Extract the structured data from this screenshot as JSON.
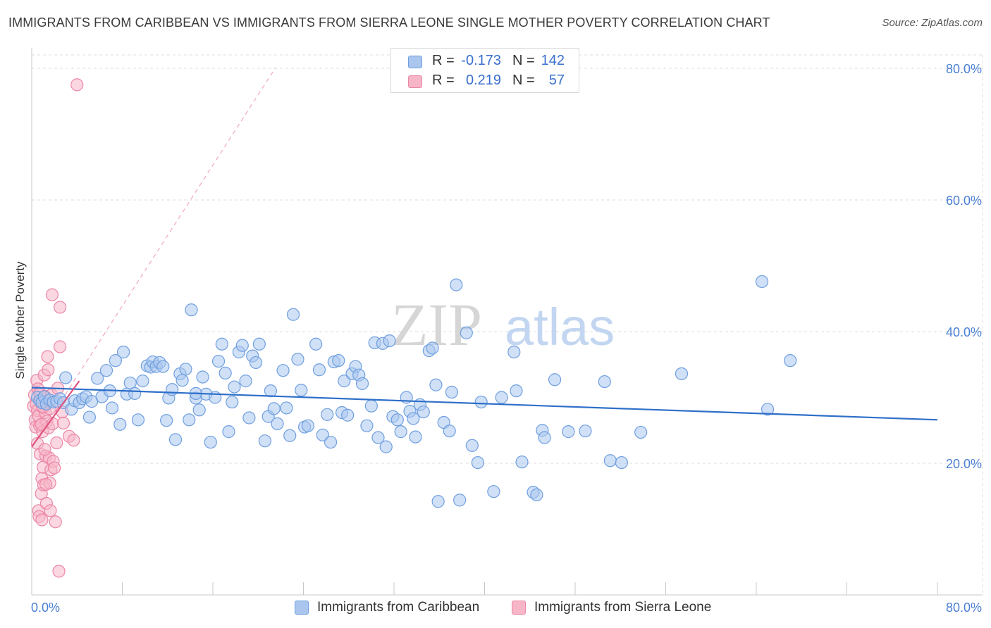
{
  "header": {
    "title": "IMMIGRANTS FROM CARIBBEAN VS IMMIGRANTS FROM SIERRA LEONE SINGLE MOTHER POVERTY CORRELATION CHART",
    "source": "Source: ZipAtlas.com"
  },
  "legend": {
    "rows": [
      {
        "r_label": "R =",
        "r_value": "-0.173",
        "n_label": "N =",
        "n_value": "142"
      },
      {
        "r_label": "R =",
        "r_value": "0.219",
        "n_label": "N =",
        "n_value": "57"
      }
    ]
  },
  "bottom_legend": {
    "items": [
      "Immigrants from Caribbean",
      "Immigrants from Sierra Leone"
    ]
  },
  "watermark": {
    "part1": "ZIP",
    "part2": "atlas"
  },
  "colors": {
    "blue_fill": "#aac6ef",
    "blue_stroke": "#6f9fe0",
    "blue_line": "#2e6fc9",
    "pink_fill": "#f6b6c8",
    "pink_stroke": "#ec86a6",
    "pink_line": "#e0527e",
    "grid": "#dcdcdc",
    "tick_text": "#4a7fd4"
  },
  "chart_data": {
    "type": "scatter",
    "title": "IMMIGRANTS FROM CARIBBEAN VS IMMIGRANTS FROM SIERRA LEONE SINGLE MOTHER POVERTY CORRELATION CHART",
    "xlabel": "",
    "ylabel": "Single Mother Poverty",
    "xlim": [
      0,
      82
    ],
    "ylim": [
      0,
      82
    ],
    "x_tick_labels": [
      "0.0%",
      "80.0%"
    ],
    "y_tick_labels": [
      "20.0%",
      "40.0%",
      "60.0%",
      "80.0%"
    ],
    "y_ticks": [
      20,
      40,
      60,
      80
    ],
    "grid": "horizontal dashed",
    "legend_position": "top-center",
    "series": [
      {
        "name": "Immigrants from Caribbean",
        "R": -0.173,
        "N": 142,
        "trend": {
          "x": [
            0,
            80
          ],
          "y": [
            31.5,
            26.6
          ]
        },
        "points": [
          [
            0.5,
            30.0
          ],
          [
            0.7,
            29.5
          ],
          [
            0.9,
            29.2
          ],
          [
            1.1,
            30.1
          ],
          [
            1.3,
            29.0
          ],
          [
            1.6,
            29.6
          ],
          [
            1.9,
            29.3
          ],
          [
            2.2,
            29.4
          ],
          [
            2.5,
            29.8
          ],
          [
            2.8,
            29.2
          ],
          [
            3.0,
            33.0
          ],
          [
            3.5,
            28.2
          ],
          [
            3.8,
            29.5
          ],
          [
            4.2,
            29.2
          ],
          [
            4.5,
            29.8
          ],
          [
            4.8,
            30.1
          ],
          [
            5.1,
            27.0
          ],
          [
            5.3,
            29.4
          ],
          [
            5.8,
            32.9
          ],
          [
            6.2,
            30.1
          ],
          [
            6.6,
            34.1
          ],
          [
            6.9,
            31.0
          ],
          [
            7.1,
            28.4
          ],
          [
            7.4,
            35.6
          ],
          [
            7.8,
            25.9
          ],
          [
            8.1,
            36.9
          ],
          [
            8.4,
            30.5
          ],
          [
            8.7,
            32.2
          ],
          [
            9.1,
            30.6
          ],
          [
            9.4,
            26.6
          ],
          [
            9.8,
            32.5
          ],
          [
            10.2,
            34.8
          ],
          [
            10.5,
            34.6
          ],
          [
            10.7,
            35.4
          ],
          [
            11.0,
            34.7
          ],
          [
            11.3,
            35.3
          ],
          [
            11.6,
            34.7
          ],
          [
            11.9,
            26.5
          ],
          [
            12.1,
            29.9
          ],
          [
            12.4,
            31.2
          ],
          [
            12.7,
            23.6
          ],
          [
            13.1,
            33.6
          ],
          [
            13.3,
            32.6
          ],
          [
            13.6,
            34.3
          ],
          [
            13.9,
            26.6
          ],
          [
            14.1,
            43.3
          ],
          [
            14.5,
            29.9
          ],
          [
            14.8,
            28.1
          ],
          [
            15.1,
            33.1
          ],
          [
            15.4,
            30.5
          ],
          [
            15.8,
            23.2
          ],
          [
            16.2,
            30.0
          ],
          [
            16.5,
            35.5
          ],
          [
            16.8,
            38.1
          ],
          [
            17.1,
            33.7
          ],
          [
            17.4,
            24.8
          ],
          [
            17.7,
            29.3
          ],
          [
            17.9,
            31.6
          ],
          [
            18.3,
            36.9
          ],
          [
            18.6,
            37.9
          ],
          [
            18.9,
            32.5
          ],
          [
            19.2,
            26.9
          ],
          [
            19.5,
            36.3
          ],
          [
            19.8,
            35.3
          ],
          [
            20.1,
            38.1
          ],
          [
            20.6,
            23.4
          ],
          [
            20.9,
            27.1
          ],
          [
            21.1,
            31.0
          ],
          [
            21.4,
            28.3
          ],
          [
            21.7,
            26.0
          ],
          [
            22.2,
            34.1
          ],
          [
            22.5,
            28.4
          ],
          [
            22.8,
            24.2
          ],
          [
            23.1,
            42.6
          ],
          [
            23.5,
            35.8
          ],
          [
            23.8,
            31.1
          ],
          [
            24.1,
            25.5
          ],
          [
            24.4,
            25.7
          ],
          [
            25.1,
            38.1
          ],
          [
            25.4,
            34.2
          ],
          [
            25.7,
            24.3
          ],
          [
            26.1,
            27.4
          ],
          [
            26.4,
            23.2
          ],
          [
            26.7,
            35.4
          ],
          [
            27.1,
            35.6
          ],
          [
            27.4,
            27.7
          ],
          [
            27.6,
            32.5
          ],
          [
            27.9,
            27.3
          ],
          [
            28.3,
            33.6
          ],
          [
            28.6,
            34.7
          ],
          [
            28.9,
            33.4
          ],
          [
            29.2,
            32.1
          ],
          [
            29.6,
            25.7
          ],
          [
            30.0,
            28.7
          ],
          [
            30.3,
            38.3
          ],
          [
            30.6,
            23.9
          ],
          [
            31.0,
            38.2
          ],
          [
            31.3,
            22.5
          ],
          [
            31.6,
            38.6
          ],
          [
            31.9,
            27.1
          ],
          [
            32.3,
            26.6
          ],
          [
            32.6,
            24.8
          ],
          [
            33.1,
            30.0
          ],
          [
            33.4,
            27.9
          ],
          [
            33.7,
            26.8
          ],
          [
            33.9,
            24.0
          ],
          [
            34.3,
            28.9
          ],
          [
            34.6,
            27.8
          ],
          [
            35.1,
            37.1
          ],
          [
            35.4,
            37.5
          ],
          [
            35.7,
            31.9
          ],
          [
            35.9,
            14.2
          ],
          [
            36.4,
            26.2
          ],
          [
            37.1,
            30.8
          ],
          [
            37.5,
            47.1
          ],
          [
            37.8,
            14.4
          ],
          [
            38.4,
            39.8
          ],
          [
            38.9,
            22.7
          ],
          [
            39.4,
            20.1
          ],
          [
            39.7,
            29.3
          ],
          [
            40.8,
            15.7
          ],
          [
            41.5,
            30.0
          ],
          [
            42.6,
            36.9
          ],
          [
            42.8,
            31.0
          ],
          [
            43.3,
            20.2
          ],
          [
            44.3,
            15.6
          ],
          [
            44.6,
            15.2
          ],
          [
            45.1,
            25.0
          ],
          [
            45.3,
            23.9
          ],
          [
            46.2,
            32.7
          ],
          [
            47.4,
            24.8
          ],
          [
            48.9,
            24.9
          ],
          [
            50.6,
            32.4
          ],
          [
            51.1,
            20.4
          ],
          [
            52.1,
            20.1
          ],
          [
            53.8,
            24.7
          ],
          [
            57.4,
            33.6
          ],
          [
            64.5,
            47.6
          ],
          [
            65.0,
            28.2
          ],
          [
            67.0,
            35.6
          ],
          [
            14.5,
            30.6
          ],
          [
            36.9,
            24.9
          ]
        ]
      },
      {
        "name": "Immigrants from Sierra Leone",
        "R": 0.219,
        "N": 57,
        "trend": {
          "x": [
            0,
            4.2
          ],
          "y": [
            22.5,
            32.5
          ]
        },
        "trend_dashed": {
          "x": [
            0,
            21.5
          ],
          "y": [
            22.5,
            80
          ]
        },
        "points": [
          [
            0.15,
            28.7
          ],
          [
            0.25,
            30.4
          ],
          [
            0.3,
            26.6
          ],
          [
            0.35,
            25.5
          ],
          [
            0.4,
            29.0
          ],
          [
            0.45,
            32.6
          ],
          [
            0.5,
            28.0
          ],
          [
            0.5,
            23.0
          ],
          [
            0.55,
            31.3
          ],
          [
            0.6,
            27.2
          ],
          [
            0.6,
            12.8
          ],
          [
            0.65,
            11.9
          ],
          [
            0.7,
            30.6
          ],
          [
            0.7,
            25.7
          ],
          [
            0.75,
            21.4
          ],
          [
            0.8,
            29.6
          ],
          [
            0.85,
            15.4
          ],
          [
            0.9,
            17.7
          ],
          [
            0.9,
            11.4
          ],
          [
            0.95,
            24.8
          ],
          [
            1.0,
            28.4
          ],
          [
            1.0,
            19.4
          ],
          [
            1.05,
            16.7
          ],
          [
            1.1,
            33.4
          ],
          [
            1.15,
            30.2
          ],
          [
            1.2,
            27.7
          ],
          [
            1.25,
            21.1
          ],
          [
            1.3,
            13.9
          ],
          [
            1.35,
            26.4
          ],
          [
            1.4,
            36.2
          ],
          [
            1.5,
            25.4
          ],
          [
            1.55,
            20.8
          ],
          [
            1.6,
            28.3
          ],
          [
            1.6,
            17.0
          ],
          [
            1.65,
            12.8
          ],
          [
            1.7,
            19.0
          ],
          [
            1.75,
            30.4
          ],
          [
            1.8,
            45.6
          ],
          [
            1.85,
            26.0
          ],
          [
            1.9,
            20.3
          ],
          [
            2.0,
            19.3
          ],
          [
            2.1,
            11.1
          ],
          [
            2.2,
            23.1
          ],
          [
            2.3,
            31.4
          ],
          [
            2.4,
            3.6
          ],
          [
            2.5,
            43.7
          ],
          [
            2.5,
            37.7
          ],
          [
            2.7,
            27.8
          ],
          [
            2.8,
            26.1
          ],
          [
            3.3,
            24.1
          ],
          [
            3.7,
            23.5
          ],
          [
            4.0,
            77.5
          ],
          [
            1.45,
            34.2
          ],
          [
            0.85,
            25.9
          ],
          [
            1.25,
            16.8
          ],
          [
            0.95,
            28.6
          ],
          [
            1.15,
            22.1
          ]
        ]
      }
    ]
  }
}
